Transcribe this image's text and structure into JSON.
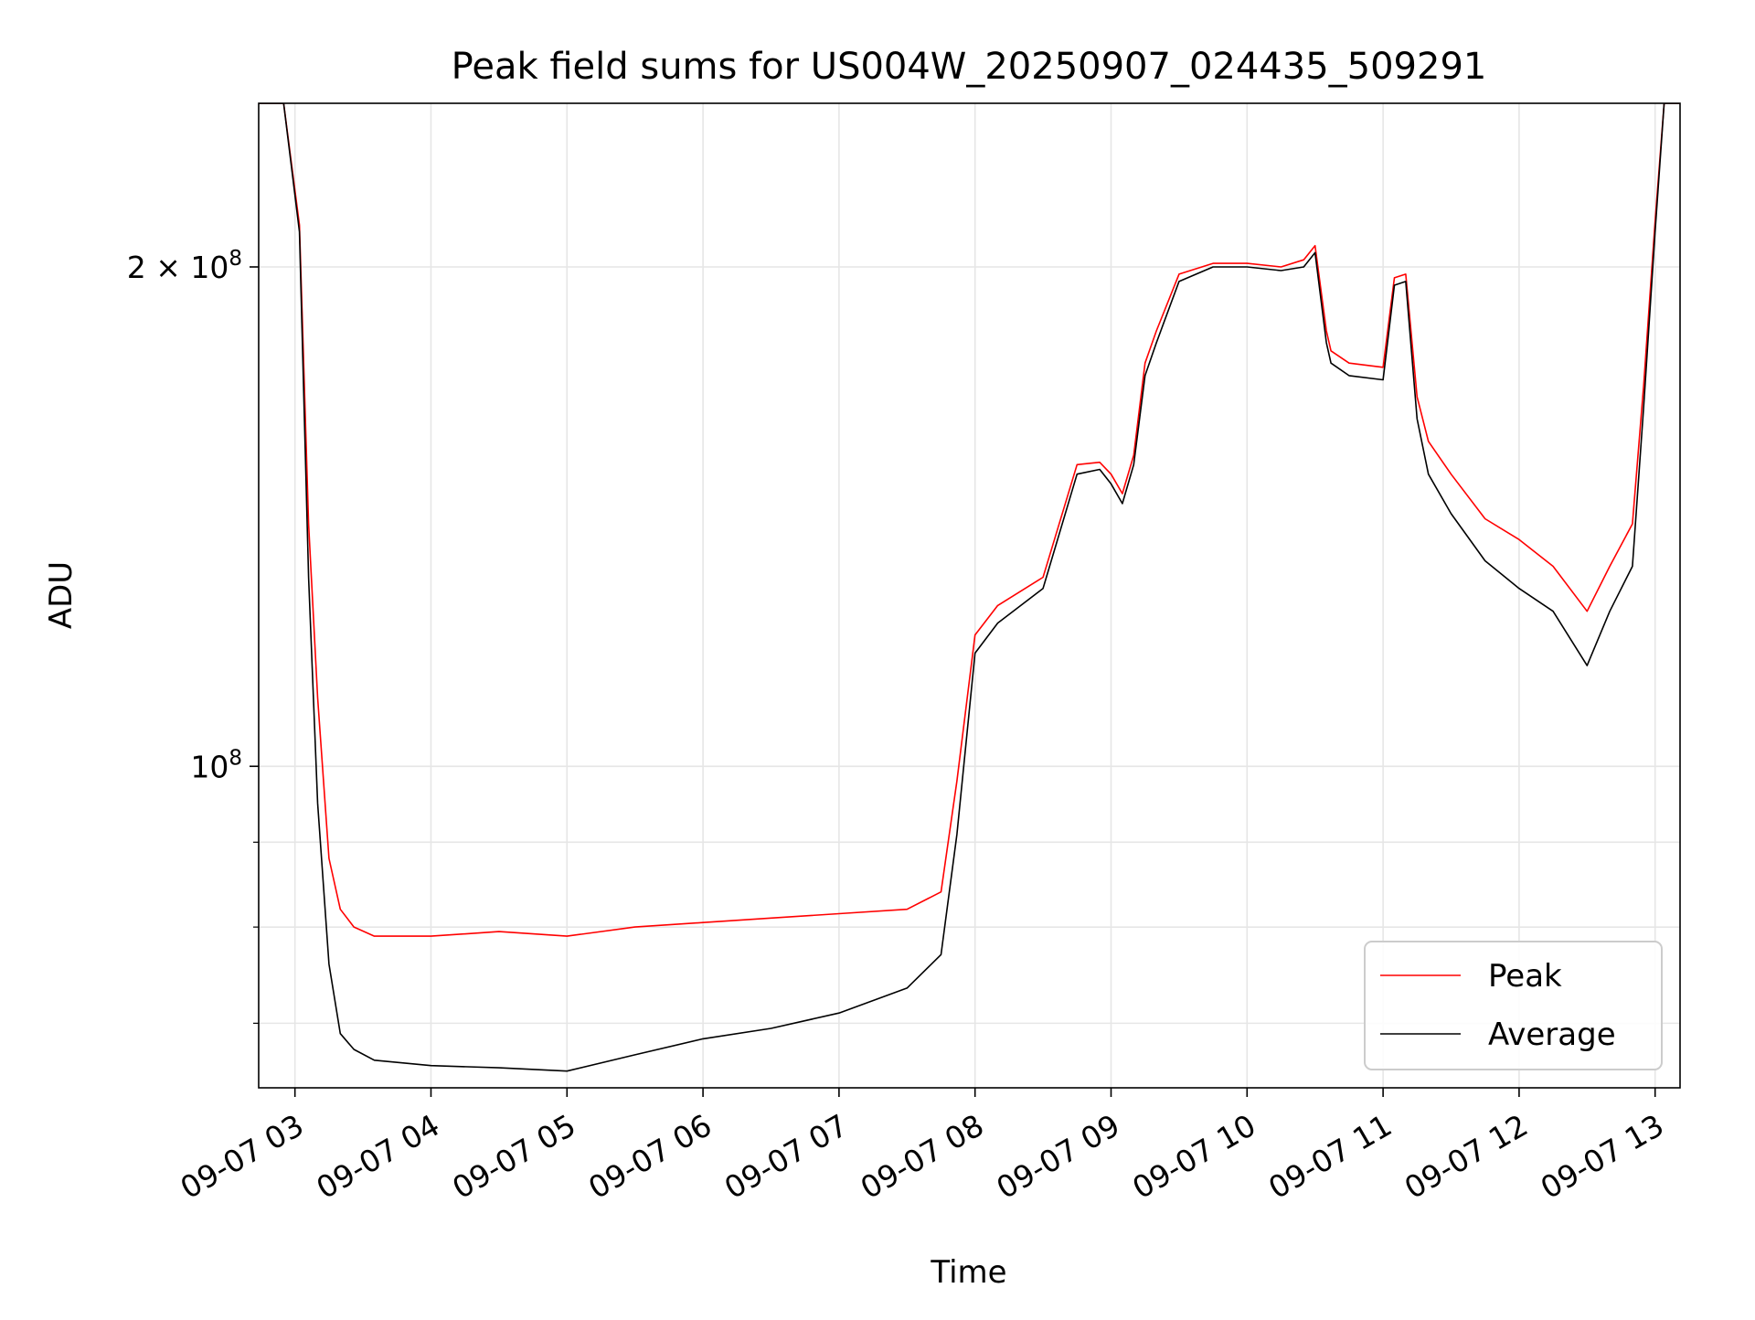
{
  "chart_data": {
    "type": "line",
    "title": "Peak field sums for US004W_20250907_024435_509291",
    "xlabel": "Time",
    "ylabel": "ADU",
    "yscale": "log",
    "xlim": [
      "2025-09-07 02:44",
      "2025-09-07 13:11"
    ],
    "ylim": [
      64000000,
      251000000
    ],
    "xticks": [
      "2025-09-07 03:00",
      "2025-09-07 04:00",
      "2025-09-07 05:00",
      "2025-09-07 06:00",
      "2025-09-07 07:00",
      "2025-09-07 08:00",
      "2025-09-07 09:00",
      "2025-09-07 10:00",
      "2025-09-07 11:00",
      "2025-09-07 12:00",
      "2025-09-07 13:00"
    ],
    "xtick_labels": [
      "09-07 03",
      "09-07 04",
      "09-07 05",
      "09-07 06",
      "09-07 07",
      "09-07 08",
      "09-07 09",
      "09-07 10",
      "09-07 11",
      "09-07 12",
      "09-07 13"
    ],
    "yticks_major": [
      {
        "value": 100000000,
        "base": "10",
        "exp": "8",
        "mult": ""
      },
      {
        "value": 200000000,
        "base": "10",
        "exp": "8",
        "mult": "2 × "
      }
    ],
    "yticks_minor": [
      70000000,
      80000000,
      90000000
    ],
    "grid": true,
    "legend_position": "lower-right",
    "series": [
      {
        "name": "Average",
        "color": "#000000",
        "x": [
          "2025-09-07 02:44",
          "2025-09-07 02:55",
          "2025-09-07 03:02",
          "2025-09-07 03:06",
          "2025-09-07 03:10",
          "2025-09-07 03:15",
          "2025-09-07 03:20",
          "2025-09-07 03:26",
          "2025-09-07 03:35",
          "2025-09-07 04:00",
          "2025-09-07 04:30",
          "2025-09-07 05:00",
          "2025-09-07 05:30",
          "2025-09-07 06:00",
          "2025-09-07 06:30",
          "2025-09-07 07:00",
          "2025-09-07 07:30",
          "2025-09-07 07:45",
          "2025-09-07 07:52",
          "2025-09-07 08:00",
          "2025-09-07 08:10",
          "2025-09-07 08:30",
          "2025-09-07 08:45",
          "2025-09-07 08:55",
          "2025-09-07 09:00",
          "2025-09-07 09:05",
          "2025-09-07 09:10",
          "2025-09-07 09:15",
          "2025-09-07 09:20",
          "2025-09-07 09:30",
          "2025-09-07 09:45",
          "2025-09-07 10:00",
          "2025-09-07 10:15",
          "2025-09-07 10:25",
          "2025-09-07 10:30",
          "2025-09-07 10:35",
          "2025-09-07 10:37",
          "2025-09-07 10:45",
          "2025-09-07 11:00",
          "2025-09-07 11:05",
          "2025-09-07 11:10",
          "2025-09-07 11:15",
          "2025-09-07 11:20",
          "2025-09-07 11:30",
          "2025-09-07 11:45",
          "2025-09-07 12:00",
          "2025-09-07 12:15",
          "2025-09-07 12:30",
          "2025-09-07 12:40",
          "2025-09-07 12:50",
          "2025-09-07 12:55",
          "2025-09-07 13:00",
          "2025-09-07 13:04",
          "2025-09-07 13:11"
        ],
        "values": [
          251000000,
          251000000,
          210000000,
          130000000,
          95000000,
          76000000,
          69000000,
          67500000,
          66500000,
          66000000,
          65800000,
          65500000,
          67000000,
          68500000,
          69500000,
          71000000,
          73500000,
          77000000,
          91000000,
          117000000,
          122000000,
          128000000,
          150000000,
          151000000,
          148000000,
          144000000,
          152000000,
          172000000,
          180000000,
          196000000,
          200000000,
          200000000,
          199000000,
          200000000,
          204000000,
          180000000,
          175000000,
          172000000,
          171000000,
          195000000,
          196000000,
          162000000,
          150000000,
          142000000,
          133000000,
          128000000,
          124000000,
          115000000,
          124000000,
          132000000,
          165000000,
          210000000,
          251000000,
          251000000
        ]
      },
      {
        "name": "Peak",
        "color": "#ff0000",
        "x": [
          "2025-09-07 02:44",
          "2025-09-07 02:55",
          "2025-09-07 03:02",
          "2025-09-07 03:06",
          "2025-09-07 03:10",
          "2025-09-07 03:15",
          "2025-09-07 03:20",
          "2025-09-07 03:26",
          "2025-09-07 03:35",
          "2025-09-07 04:00",
          "2025-09-07 04:30",
          "2025-09-07 05:00",
          "2025-09-07 05:30",
          "2025-09-07 06:00",
          "2025-09-07 06:30",
          "2025-09-07 07:00",
          "2025-09-07 07:30",
          "2025-09-07 07:45",
          "2025-09-07 07:52",
          "2025-09-07 08:00",
          "2025-09-07 08:10",
          "2025-09-07 08:30",
          "2025-09-07 08:45",
          "2025-09-07 08:55",
          "2025-09-07 09:00",
          "2025-09-07 09:05",
          "2025-09-07 09:10",
          "2025-09-07 09:15",
          "2025-09-07 09:20",
          "2025-09-07 09:30",
          "2025-09-07 09:45",
          "2025-09-07 10:00",
          "2025-09-07 10:15",
          "2025-09-07 10:25",
          "2025-09-07 10:30",
          "2025-09-07 10:35",
          "2025-09-07 10:37",
          "2025-09-07 10:45",
          "2025-09-07 11:00",
          "2025-09-07 11:05",
          "2025-09-07 11:10",
          "2025-09-07 11:15",
          "2025-09-07 11:20",
          "2025-09-07 11:30",
          "2025-09-07 11:45",
          "2025-09-07 12:00",
          "2025-09-07 12:15",
          "2025-09-07 12:30",
          "2025-09-07 12:40",
          "2025-09-07 12:50",
          "2025-09-07 12:55",
          "2025-09-07 13:00",
          "2025-09-07 13:04",
          "2025-09-07 13:11"
        ],
        "values": [
          251000000,
          251000000,
          212000000,
          140000000,
          110000000,
          88000000,
          82000000,
          80000000,
          79000000,
          79000000,
          79500000,
          79000000,
          80000000,
          80500000,
          81000000,
          81500000,
          82000000,
          84000000,
          98000000,
          120000000,
          125000000,
          130000000,
          152000000,
          152500000,
          150000000,
          146000000,
          154000000,
          175000000,
          183000000,
          198000000,
          201000000,
          201000000,
          200000000,
          202000000,
          206000000,
          183000000,
          178000000,
          175000000,
          174000000,
          197000000,
          198000000,
          167000000,
          157000000,
          150000000,
          141000000,
          137000000,
          132000000,
          124000000,
          132000000,
          140000000,
          170000000,
          213000000,
          251000000,
          251000000
        ]
      }
    ]
  }
}
